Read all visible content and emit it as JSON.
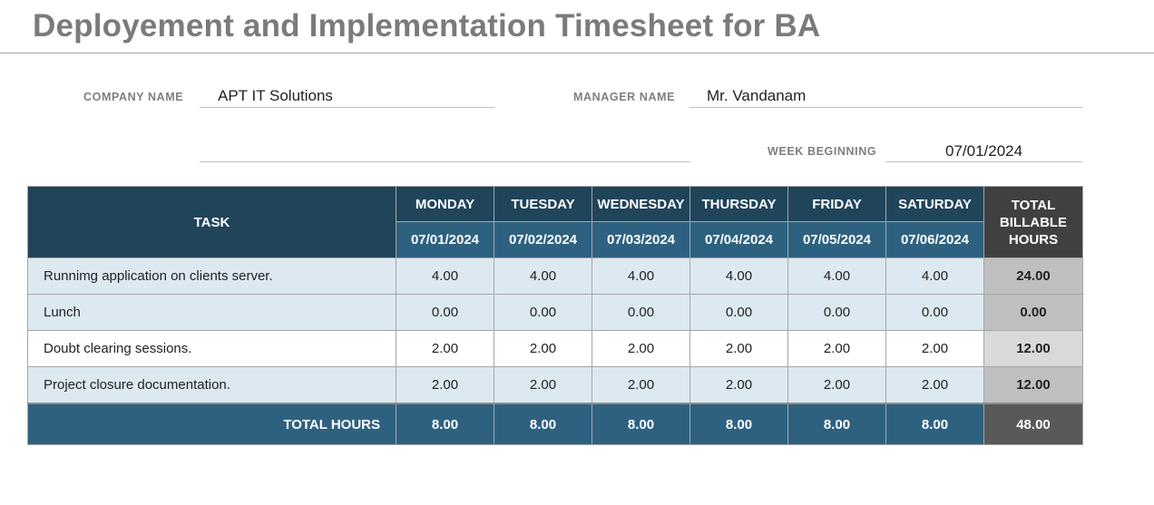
{
  "title": "Deployement and Implementation Timesheet for BA",
  "fields": {
    "company_label": "COMPANY NAME",
    "company_value": "APT IT Solutions",
    "manager_label": "MANAGER NAME",
    "manager_value": "Mr. Vandanam",
    "week_label": "WEEK BEGINNING",
    "week_value": "07/01/2024"
  },
  "table": {
    "task_header": "TASK",
    "total_header_lines": [
      "TOTAL",
      "BILLABLE",
      "HOURS"
    ],
    "days": [
      {
        "name": "MONDAY",
        "date": "07/01/2024"
      },
      {
        "name": "TUESDAY",
        "date": "07/02/2024"
      },
      {
        "name": "WEDNESDAY",
        "date": "07/03/2024"
      },
      {
        "name": "THURSDAY",
        "date": "07/04/2024"
      },
      {
        "name": "FRIDAY",
        "date": "07/05/2024"
      },
      {
        "name": "SATURDAY",
        "date": "07/06/2024"
      }
    ],
    "rows": [
      {
        "task": "Runnimg application on clients server.",
        "hours": [
          "4.00",
          "4.00",
          "4.00",
          "4.00",
          "4.00",
          "4.00"
        ],
        "total": "24.00"
      },
      {
        "task": "Lunch",
        "hours": [
          "0.00",
          "0.00",
          "0.00",
          "0.00",
          "0.00",
          "0.00"
        ],
        "total": "0.00"
      },
      {
        "task": "Doubt clearing sessions.",
        "hours": [
          "2.00",
          "2.00",
          "2.00",
          "2.00",
          "2.00",
          "2.00"
        ],
        "total": "12.00"
      },
      {
        "task": "Project closure documentation.",
        "hours": [
          "2.00",
          "2.00",
          "2.00",
          "2.00",
          "2.00",
          "2.00"
        ],
        "total": "12.00"
      }
    ],
    "totals": {
      "label": "TOTAL HOURS",
      "days": [
        "8.00",
        "8.00",
        "8.00",
        "8.00",
        "8.00",
        "8.00"
      ],
      "grand": "48.00"
    }
  }
}
